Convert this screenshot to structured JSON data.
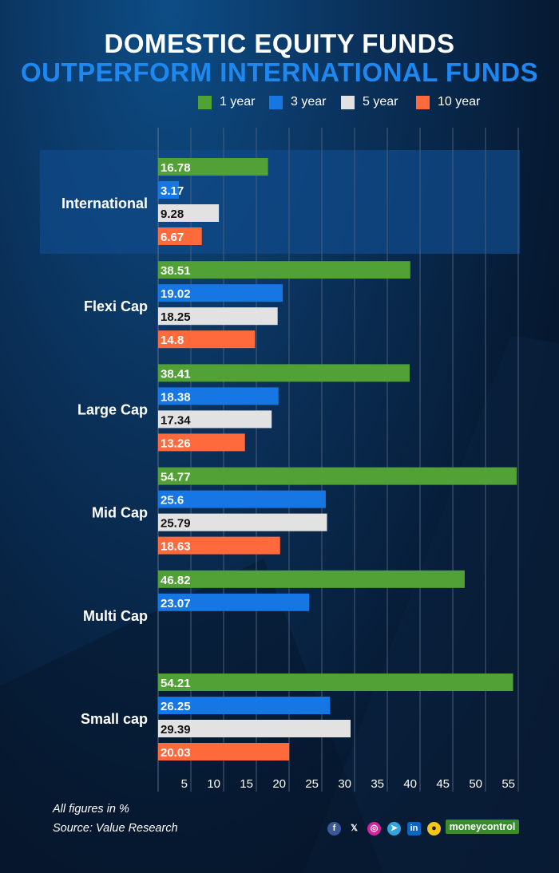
{
  "title_line1": "DOMESTIC EQUITY FUNDS",
  "title_line2": "OUTPERFORM INTERNATIONAL FUNDS",
  "legend": [
    {
      "label": "1 year",
      "color": "#52a136"
    },
    {
      "label": "3 year",
      "color": "#1677e4"
    },
    {
      "label": "5 year",
      "color": "#e2e2e2"
    },
    {
      "label": "10 year",
      "color": "#ff6a3d"
    }
  ],
  "chart_data": {
    "type": "bar",
    "orientation": "horizontal",
    "categories": [
      "International",
      "Flexi Cap",
      "Large Cap",
      "Mid Cap",
      "Multi Cap",
      "Small cap"
    ],
    "highlighted_category": "International",
    "series": [
      {
        "name": "1 year",
        "color": "#52a136",
        "values": [
          16.78,
          38.51,
          38.41,
          54.77,
          46.82,
          54.21
        ],
        "labels": [
          "16.78",
          "38.51",
          "38.41",
          "54.77",
          "46.82",
          "54.21"
        ]
      },
      {
        "name": "3 year",
        "color": "#1677e4",
        "values": [
          3.17,
          19.02,
          18.38,
          25.6,
          23.07,
          26.25
        ],
        "labels": [
          "3.17",
          "19.02",
          "18.38",
          "25.6",
          "23.07",
          "26.25"
        ]
      },
      {
        "name": "5 year",
        "color": "#e2e2e2",
        "values": [
          9.28,
          18.25,
          17.34,
          25.79,
          null,
          29.39
        ],
        "labels": [
          "9.28",
          "18.25",
          "17.34",
          "25.79",
          null,
          "29.39"
        ]
      },
      {
        "name": "10 year",
        "color": "#ff6a3d",
        "values": [
          6.67,
          14.8,
          13.26,
          18.63,
          null,
          20.03
        ],
        "labels": [
          "6.67",
          "14.8",
          "13.26",
          "18.63",
          null,
          "20.03"
        ]
      }
    ],
    "x_ticks": [
      "5",
      "10",
      "15",
      "20",
      "25",
      "30",
      "35",
      "40",
      "45",
      "50",
      "55"
    ],
    "xlim": [
      0,
      55
    ],
    "grid": true,
    "legend_position": "top"
  },
  "footnote": "All figures in %",
  "source": "Source: Value Research",
  "social_icons": [
    "facebook-icon",
    "x-icon",
    "instagram-icon",
    "telegram-icon",
    "linkedin-icon",
    "snapchat-icon"
  ],
  "brand": "moneycontrol"
}
